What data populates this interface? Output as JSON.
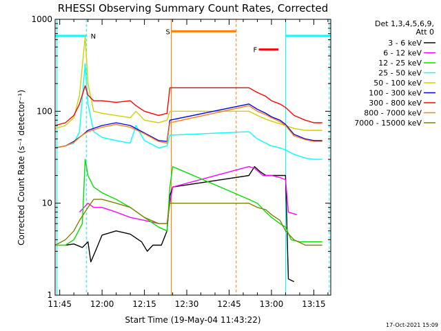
{
  "chart_data": {
    "type": "line",
    "title": "RHESSI Observing Summary Count Rates, Corrected",
    "xlabel": "Start Time (19-May-04 11:43:22)",
    "ylabel": "Corrected Count Rate (s⁻¹ detector⁻¹)",
    "y_scale": "log",
    "ylim": [
      1,
      1000
    ],
    "xlim": [
      "11:43:22",
      "13:21:00"
    ],
    "x_ticks": [
      "11:45",
      "12:00",
      "12:15",
      "12:30",
      "12:45",
      "13:00",
      "13:15"
    ],
    "y_ticks": [
      "1",
      "10",
      "100",
      "1000"
    ],
    "legend": {
      "placement": "right",
      "header": [
        "Det 1,3,4,5,6,9,",
        "Att 0"
      ]
    },
    "grid": false,
    "series": [
      {
        "name": "3 - 6 keV",
        "color": "#000000",
        "points": [
          [
            "11:47",
            3.5
          ],
          [
            "11:50",
            3.6
          ],
          [
            "11:53",
            3.3
          ],
          [
            "11:55",
            3.8
          ],
          [
            "11:56",
            2.3
          ],
          [
            "11:58",
            3.2
          ],
          [
            "12:00",
            4.5
          ],
          [
            "12:05",
            5.0
          ],
          [
            "12:10",
            4.6
          ],
          [
            "12:14",
            3.8
          ],
          [
            "12:16",
            3.0
          ],
          [
            "12:18",
            3.5
          ],
          [
            "12:21",
            3.5
          ],
          [
            "12:23",
            5.0
          ],
          [
            "12:24",
            12
          ],
          [
            "12:25",
            15
          ],
          [
            "12:52",
            20
          ],
          [
            "12:54",
            25
          ],
          [
            "12:56",
            22
          ],
          [
            "12:58",
            20
          ],
          [
            "13:00",
            20
          ],
          [
            "13:02",
            20
          ],
          [
            "13:04",
            20
          ],
          [
            "13:05",
            20
          ],
          [
            "13:06",
            1.5
          ],
          [
            "13:08",
            1.4
          ]
        ]
      },
      {
        "name": "6 - 12 keV",
        "color": "#ff00ff",
        "points": [
          [
            "11:52",
            8
          ],
          [
            "11:55",
            10
          ],
          [
            "11:57",
            9
          ],
          [
            "12:00",
            9
          ],
          [
            "12:05",
            8
          ],
          [
            "12:10",
            7
          ],
          [
            "12:15",
            6.5
          ],
          [
            "12:20",
            6
          ],
          [
            "12:23",
            6
          ],
          [
            "12:24",
            10
          ],
          [
            "12:25",
            15
          ],
          [
            "12:52",
            25
          ],
          [
            "12:54",
            24
          ],
          [
            "12:57",
            20
          ],
          [
            "13:00",
            20
          ],
          [
            "13:03",
            19
          ],
          [
            "13:05",
            18
          ],
          [
            "13:06",
            8
          ],
          [
            "13:09",
            7.5
          ]
        ]
      },
      {
        "name": "12 - 25 keV",
        "color": "#00e000",
        "points": [
          [
            "11:43:22",
            3.5
          ],
          [
            "11:47",
            3.5
          ],
          [
            "11:50",
            4
          ],
          [
            "11:53",
            6
          ],
          [
            "11:54",
            30
          ],
          [
            "11:55",
            20
          ],
          [
            "11:57",
            15
          ],
          [
            "12:00",
            13
          ],
          [
            "12:05",
            11
          ],
          [
            "12:10",
            9
          ],
          [
            "12:15",
            7
          ],
          [
            "12:20",
            5.5
          ],
          [
            "12:23",
            5
          ],
          [
            "12:24",
            15
          ],
          [
            "12:25",
            25
          ],
          [
            "12:52",
            11
          ],
          [
            "12:55",
            10
          ],
          [
            "12:58",
            8
          ],
          [
            "13:00",
            7
          ],
          [
            "13:03",
            6
          ],
          [
            "13:05",
            5.5
          ],
          [
            "13:07",
            4
          ],
          [
            "13:10",
            3.8
          ],
          [
            "13:15",
            3.8
          ],
          [
            "13:18",
            3.8
          ]
        ]
      },
      {
        "name": "25 - 50 keV",
        "color": "#00ffff",
        "points": [
          [
            "11:43:22",
            40
          ],
          [
            "11:47",
            42
          ],
          [
            "11:50",
            45
          ],
          [
            "11:52",
            60
          ],
          [
            "11:54",
            330
          ],
          [
            "11:55",
            120
          ],
          [
            "11:57",
            60
          ],
          [
            "12:00",
            52
          ],
          [
            "12:05",
            48
          ],
          [
            "12:10",
            45
          ],
          [
            "12:12",
            70
          ],
          [
            "12:15",
            48
          ],
          [
            "12:20",
            40
          ],
          [
            "12:23",
            42
          ],
          [
            "12:24",
            55
          ],
          [
            "12:52",
            60
          ],
          [
            "12:55",
            50
          ],
          [
            "12:58",
            45
          ],
          [
            "13:00",
            42
          ],
          [
            "13:03",
            40
          ],
          [
            "13:05",
            38
          ],
          [
            "13:08",
            34
          ],
          [
            "13:12",
            31
          ],
          [
            "13:15",
            30
          ],
          [
            "13:18",
            30
          ]
        ]
      },
      {
        "name": "50 - 100 keV",
        "color": "#d0d000",
        "points": [
          [
            "11:43:22",
            65
          ],
          [
            "11:47",
            70
          ],
          [
            "11:50",
            85
          ],
          [
            "11:52",
            150
          ],
          [
            "11:54",
            650
          ],
          [
            "11:55",
            200
          ],
          [
            "11:57",
            100
          ],
          [
            "12:00",
            95
          ],
          [
            "12:05",
            90
          ],
          [
            "12:10",
            85
          ],
          [
            "12:12",
            100
          ],
          [
            "12:15",
            80
          ],
          [
            "12:20",
            75
          ],
          [
            "12:23",
            80
          ],
          [
            "12:24",
            100
          ],
          [
            "12:52",
            100
          ],
          [
            "12:55",
            90
          ],
          [
            "12:58",
            82
          ],
          [
            "13:00",
            78
          ],
          [
            "13:03",
            73
          ],
          [
            "13:05",
            70
          ],
          [
            "13:08",
            65
          ],
          [
            "13:12",
            62
          ],
          [
            "13:15",
            62
          ],
          [
            "13:18",
            62
          ]
        ]
      },
      {
        "name": "100 - 300 keV",
        "color": "#0000ff",
        "points": [
          [
            "11:43:22",
            40
          ],
          [
            "11:47",
            42
          ],
          [
            "11:50",
            47
          ],
          [
            "11:53",
            55
          ],
          [
            "11:55",
            62
          ],
          [
            "12:00",
            70
          ],
          [
            "12:05",
            75
          ],
          [
            "12:10",
            70
          ],
          [
            "12:15",
            58
          ],
          [
            "12:20",
            48
          ],
          [
            "12:23",
            47
          ],
          [
            "12:24",
            80
          ],
          [
            "12:52",
            120
          ],
          [
            "12:55",
            105
          ],
          [
            "12:58",
            95
          ],
          [
            "13:00",
            87
          ],
          [
            "13:03",
            80
          ],
          [
            "13:05",
            72
          ],
          [
            "13:08",
            56
          ],
          [
            "13:12",
            50
          ],
          [
            "13:15",
            48
          ],
          [
            "13:18",
            48
          ]
        ]
      },
      {
        "name": "300 - 800 keV",
        "color": "#ff0000",
        "points": [
          [
            "11:43:22",
            70
          ],
          [
            "11:47",
            75
          ],
          [
            "11:50",
            90
          ],
          [
            "11:52",
            120
          ],
          [
            "11:54",
            190
          ],
          [
            "11:55",
            150
          ],
          [
            "11:57",
            130
          ],
          [
            "12:00",
            130
          ],
          [
            "12:05",
            125
          ],
          [
            "12:10",
            130
          ],
          [
            "12:12",
            115
          ],
          [
            "12:15",
            100
          ],
          [
            "12:20",
            90
          ],
          [
            "12:23",
            95
          ],
          [
            "12:24",
            180
          ],
          [
            "12:52",
            180
          ],
          [
            "12:55",
            160
          ],
          [
            "12:58",
            145
          ],
          [
            "13:00",
            130
          ],
          [
            "13:03",
            120
          ],
          [
            "13:05",
            110
          ],
          [
            "13:08",
            90
          ],
          [
            "13:12",
            80
          ],
          [
            "13:15",
            75
          ],
          [
            "13:18",
            75
          ]
        ]
      },
      {
        "name": "800 - 7000 keV",
        "color": "#ff8000",
        "points": [
          [
            "11:43:22",
            40
          ],
          [
            "11:47",
            42
          ],
          [
            "11:50",
            46
          ],
          [
            "11:53",
            55
          ],
          [
            "11:55",
            60
          ],
          [
            "12:00",
            67
          ],
          [
            "12:05",
            72
          ],
          [
            "12:10",
            67
          ],
          [
            "12:15",
            57
          ],
          [
            "12:20",
            47
          ],
          [
            "12:23",
            45
          ],
          [
            "12:24",
            75
          ],
          [
            "12:52",
            115
          ],
          [
            "12:55",
            100
          ],
          [
            "12:58",
            92
          ],
          [
            "13:00",
            85
          ],
          [
            "13:03",
            77
          ],
          [
            "13:05",
            70
          ],
          [
            "13:08",
            54
          ],
          [
            "13:12",
            49
          ],
          [
            "13:15",
            47
          ],
          [
            "13:18",
            47
          ]
        ]
      },
      {
        "name": "7000 - 15000 keV",
        "color": "#808000",
        "points": [
          [
            "11:43:22",
            3.5
          ],
          [
            "11:47",
            4
          ],
          [
            "11:50",
            5
          ],
          [
            "11:52",
            6.5
          ],
          [
            "11:55",
            9
          ],
          [
            "11:57",
            11
          ],
          [
            "12:00",
            11
          ],
          [
            "12:05",
            10
          ],
          [
            "12:10",
            9
          ],
          [
            "12:15",
            7
          ],
          [
            "12:20",
            6
          ],
          [
            "12:23",
            6
          ],
          [
            "12:24",
            10
          ],
          [
            "12:52",
            10
          ],
          [
            "12:55",
            9
          ],
          [
            "12:58",
            8.5
          ],
          [
            "13:00",
            7.5
          ],
          [
            "13:03",
            6.5
          ],
          [
            "13:05",
            5
          ],
          [
            "13:08",
            4
          ],
          [
            "13:12",
            3.5
          ],
          [
            "13:15",
            3.5
          ],
          [
            "13:18",
            3.5
          ]
        ]
      }
    ],
    "annotations": [
      {
        "label": "N",
        "color": "#00ffff",
        "kind": "night",
        "segments": [
          [
            "11:43:22",
            "11:54:30"
          ],
          [
            "13:05:00",
            "13:21:00"
          ]
        ],
        "y": 660,
        "markers": [
          "11:44:00",
          "11:54:30",
          "13:05:00",
          "13:20:30"
        ],
        "marker_styles": [
          "solid",
          "dashed",
          "solid",
          "dashed"
        ]
      },
      {
        "label": "S",
        "color": "#ff8000",
        "kind": "saa",
        "segments": [
          [
            "12:24:30",
            "12:47:30"
          ]
        ],
        "y": 740,
        "markers": [
          "12:24:30",
          "12:47:30"
        ],
        "marker_styles": [
          "solid",
          "dashed"
        ]
      },
      {
        "label": "F",
        "color": "#ff0000",
        "kind": "flare",
        "segments": [
          [
            "12:55:30",
            "13:02:30"
          ]
        ],
        "y": 470,
        "markers": [],
        "marker_styles": []
      }
    ],
    "footer": "17-Oct-2021 15:09"
  }
}
